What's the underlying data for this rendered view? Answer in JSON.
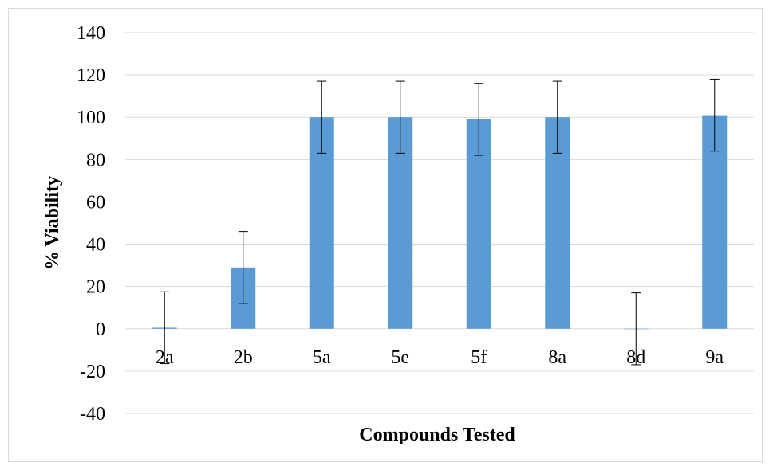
{
  "chart_data": {
    "type": "bar",
    "title": "",
    "xlabel": "Compounds Tested",
    "ylabel": "% Viability",
    "categories": [
      "2a",
      "2b",
      "5a",
      "5e",
      "5f",
      "8a",
      "8d",
      "9a"
    ],
    "values": [
      0.5,
      29,
      100,
      100,
      99,
      100,
      0,
      101
    ],
    "error": [
      17,
      17,
      17,
      17,
      17,
      17,
      17,
      17
    ],
    "ylim": [
      -40,
      140
    ],
    "yticks": [
      "-40",
      "-20",
      "0",
      "20",
      "40",
      "60",
      "80",
      "100",
      "120",
      "140"
    ],
    "grid": true,
    "legend": "none",
    "bar_color": "#5b9bd5",
    "grid_color": "#d9d9d9"
  }
}
